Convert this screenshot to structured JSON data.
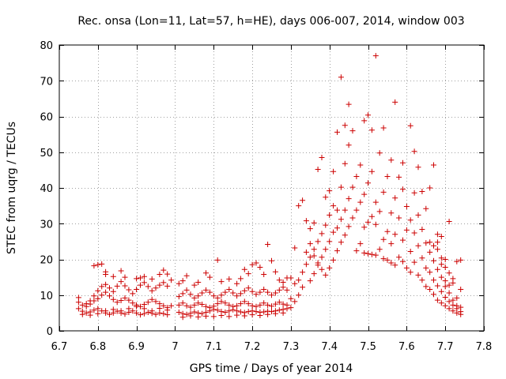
{
  "chart_data": {
    "type": "scatter",
    "title": "Rec. onsa (Lon=11, Lat=57, h=HE), days 006-007, 2014, window 003",
    "xlabel": "GPS time / Days of year 2014",
    "ylabel": "STEC from uqrg / TECUs",
    "xlim": [
      6.7,
      7.8
    ],
    "ylim": [
      0,
      80
    ],
    "xticks": [
      6.7,
      6.8,
      6.9,
      7.0,
      7.1,
      7.2,
      7.3,
      7.4,
      7.5,
      7.6,
      7.7,
      7.8
    ],
    "xtick_labels": [
      "6.7",
      "6.8",
      "6.9",
      "7",
      "7.1",
      "7.2",
      "7.3",
      "7.4",
      "7.5",
      "7.6",
      "7.7",
      "7.8"
    ],
    "yticks": [
      0,
      10,
      20,
      30,
      40,
      50,
      60,
      70,
      80
    ],
    "ytick_labels": [
      "0",
      "10",
      "20",
      "30",
      "40",
      "50",
      "60",
      "70",
      "80"
    ],
    "grid": true,
    "marker": "+",
    "series_color": "#cc0000",
    "points": [
      [
        6.75,
        9.3
      ],
      [
        6.75,
        8.0
      ],
      [
        6.76,
        7.2
      ],
      [
        6.77,
        6.8
      ],
      [
        6.78,
        7.5
      ],
      [
        6.79,
        8.4
      ],
      [
        6.8,
        9.0
      ],
      [
        6.81,
        10.0
      ],
      [
        6.82,
        10.8
      ],
      [
        6.83,
        9.8
      ],
      [
        6.84,
        8.8
      ],
      [
        6.85,
        8.0
      ],
      [
        6.86,
        8.5
      ],
      [
        6.87,
        9.2
      ],
      [
        6.88,
        8.6
      ],
      [
        6.89,
        7.8
      ],
      [
        6.9,
        7.2
      ],
      [
        6.91,
        6.8
      ],
      [
        6.92,
        7.4
      ],
      [
        6.93,
        8.0
      ],
      [
        6.94,
        8.8
      ],
      [
        6.95,
        8.2
      ],
      [
        6.96,
        7.6
      ],
      [
        6.97,
        7.0
      ],
      [
        6.98,
        6.5
      ],
      [
        6.99,
        7.0
      ],
      [
        6.75,
        6.2
      ],
      [
        6.76,
        5.5
      ],
      [
        6.77,
        5.0
      ],
      [
        6.78,
        5.3
      ],
      [
        6.79,
        5.8
      ],
      [
        6.8,
        6.2
      ],
      [
        6.81,
        5.6
      ],
      [
        6.82,
        5.0
      ],
      [
        6.83,
        4.6
      ],
      [
        6.84,
        5.0
      ],
      [
        6.85,
        5.5
      ],
      [
        6.86,
        5.0
      ],
      [
        6.87,
        4.7
      ],
      [
        6.88,
        5.2
      ],
      [
        6.89,
        5.6
      ],
      [
        6.9,
        5.0
      ],
      [
        6.91,
        4.5
      ],
      [
        6.92,
        4.8
      ],
      [
        6.93,
        5.2
      ],
      [
        6.94,
        4.9
      ],
      [
        6.95,
        4.6
      ],
      [
        6.96,
        5.0
      ],
      [
        6.97,
        4.8
      ],
      [
        6.98,
        4.5
      ],
      [
        6.77,
        7.6
      ],
      [
        6.78,
        8.4
      ],
      [
        6.79,
        9.8
      ],
      [
        6.8,
        11.2
      ],
      [
        6.81,
        12.4
      ],
      [
        6.82,
        13.0
      ],
      [
        6.83,
        12.0
      ],
      [
        6.84,
        11.0
      ],
      [
        6.85,
        12.5
      ],
      [
        6.86,
        13.8
      ],
      [
        6.87,
        12.6
      ],
      [
        6.88,
        11.5
      ],
      [
        6.89,
        10.4
      ],
      [
        6.9,
        11.6
      ],
      [
        6.91,
        12.8
      ],
      [
        6.92,
        13.5
      ],
      [
        6.93,
        12.4
      ],
      [
        6.94,
        11.2
      ],
      [
        6.95,
        12.0
      ],
      [
        6.96,
        12.8
      ],
      [
        6.97,
        13.5
      ],
      [
        6.98,
        12.5
      ],
      [
        6.79,
        18.2
      ],
      [
        6.8,
        18.5
      ],
      [
        6.81,
        18.7
      ],
      [
        6.82,
        16.5
      ],
      [
        6.82,
        15.8
      ],
      [
        6.84,
        15.2
      ],
      [
        6.86,
        16.8
      ],
      [
        6.87,
        15.0
      ],
      [
        6.9,
        14.6
      ],
      [
        6.91,
        14.8
      ],
      [
        6.92,
        15.2
      ],
      [
        6.94,
        14.5
      ],
      [
        6.96,
        15.8
      ],
      [
        6.97,
        17.0
      ],
      [
        6.98,
        15.9
      ],
      [
        6.99,
        14.2
      ],
      [
        6.76,
        4.6
      ],
      [
        6.78,
        4.4
      ],
      [
        6.8,
        4.8
      ],
      [
        6.82,
        5.6
      ],
      [
        6.84,
        6.0
      ],
      [
        6.86,
        5.6
      ],
      [
        6.88,
        6.2
      ],
      [
        6.9,
        6.8
      ],
      [
        6.92,
        6.2
      ],
      [
        6.94,
        5.6
      ],
      [
        6.96,
        6.3
      ],
      [
        6.98,
        5.8
      ],
      [
        7.01,
        5.2
      ],
      [
        7.02,
        4.8
      ],
      [
        7.03,
        4.6
      ],
      [
        7.04,
        4.9
      ],
      [
        7.05,
        5.3
      ],
      [
        7.06,
        5.0
      ],
      [
        7.07,
        4.8
      ],
      [
        7.08,
        5.2
      ],
      [
        7.09,
        5.6
      ],
      [
        7.1,
        6.0
      ],
      [
        7.11,
        5.8
      ],
      [
        7.12,
        5.4
      ],
      [
        7.13,
        5.2
      ],
      [
        7.14,
        5.6
      ],
      [
        7.15,
        5.9
      ],
      [
        7.16,
        5.6
      ],
      [
        7.17,
        5.3
      ],
      [
        7.18,
        5.1
      ],
      [
        7.19,
        5.4
      ],
      [
        7.2,
        5.6
      ],
      [
        7.21,
        5.4
      ],
      [
        7.22,
        5.2
      ],
      [
        7.23,
        5.3
      ],
      [
        7.24,
        5.5
      ],
      [
        7.25,
        5.4
      ],
      [
        7.26,
        5.6
      ],
      [
        7.27,
        5.8
      ],
      [
        7.28,
        6.0
      ],
      [
        7.29,
        6.2
      ],
      [
        7.01,
        7.2
      ],
      [
        7.02,
        7.8
      ],
      [
        7.03,
        7.0
      ],
      [
        7.04,
        6.6
      ],
      [
        7.05,
        7.2
      ],
      [
        7.06,
        7.8
      ],
      [
        7.07,
        7.4
      ],
      [
        7.08,
        6.8
      ],
      [
        7.09,
        6.5
      ],
      [
        7.1,
        6.9
      ],
      [
        7.11,
        7.6
      ],
      [
        7.12,
        8.2
      ],
      [
        7.13,
        7.8
      ],
      [
        7.14,
        7.2
      ],
      [
        7.15,
        6.8
      ],
      [
        7.16,
        7.0
      ],
      [
        7.17,
        7.6
      ],
      [
        7.18,
        8.2
      ],
      [
        7.19,
        7.6
      ],
      [
        7.2,
        7.0
      ],
      [
        7.21,
        6.8
      ],
      [
        7.22,
        7.2
      ],
      [
        7.23,
        7.8
      ],
      [
        7.24,
        7.2
      ],
      [
        7.25,
        6.9
      ],
      [
        7.26,
        7.5
      ],
      [
        7.27,
        8.0
      ],
      [
        7.28,
        7.5
      ],
      [
        7.29,
        7.2
      ],
      [
        7.01,
        9.6
      ],
      [
        7.02,
        10.4
      ],
      [
        7.03,
        11.4
      ],
      [
        7.04,
        10.2
      ],
      [
        7.05,
        9.2
      ],
      [
        7.06,
        9.8
      ],
      [
        7.07,
        10.6
      ],
      [
        7.08,
        11.4
      ],
      [
        7.09,
        10.8
      ],
      [
        7.1,
        9.8
      ],
      [
        7.11,
        9.2
      ],
      [
        7.12,
        10.0
      ],
      [
        7.13,
        10.8
      ],
      [
        7.14,
        11.6
      ],
      [
        7.15,
        10.6
      ],
      [
        7.16,
        9.8
      ],
      [
        7.17,
        10.4
      ],
      [
        7.18,
        11.2
      ],
      [
        7.19,
        12.0
      ],
      [
        7.2,
        11.0
      ],
      [
        7.21,
        10.2
      ],
      [
        7.22,
        10.8
      ],
      [
        7.23,
        11.6
      ],
      [
        7.24,
        10.8
      ],
      [
        7.25,
        10.0
      ],
      [
        7.26,
        10.6
      ],
      [
        7.27,
        11.4
      ],
      [
        7.28,
        12.2
      ],
      [
        7.29,
        11.4
      ],
      [
        7.01,
        13.2
      ],
      [
        7.02,
        14.0
      ],
      [
        7.03,
        15.4
      ],
      [
        7.05,
        12.8
      ],
      [
        7.06,
        13.6
      ],
      [
        7.08,
        16.2
      ],
      [
        7.09,
        15.0
      ],
      [
        7.11,
        19.8
      ],
      [
        7.12,
        13.8
      ],
      [
        7.14,
        14.5
      ],
      [
        7.16,
        13.2
      ],
      [
        7.17,
        14.6
      ],
      [
        7.18,
        17.2
      ],
      [
        7.19,
        16.0
      ],
      [
        7.2,
        18.5
      ],
      [
        7.21,
        19.0
      ],
      [
        7.22,
        17.8
      ],
      [
        7.23,
        15.8
      ],
      [
        7.24,
        24.2
      ],
      [
        7.25,
        19.6
      ],
      [
        7.26,
        16.5
      ],
      [
        7.27,
        14.2
      ],
      [
        7.28,
        13.6
      ],
      [
        7.29,
        14.8
      ],
      [
        7.02,
        3.8
      ],
      [
        7.04,
        4.2
      ],
      [
        7.06,
        3.9
      ],
      [
        7.08,
        4.1
      ],
      [
        7.1,
        4.0
      ],
      [
        7.12,
        4.3
      ],
      [
        7.14,
        4.0
      ],
      [
        7.16,
        4.4
      ],
      [
        7.18,
        4.2
      ],
      [
        7.2,
        4.5
      ],
      [
        7.22,
        4.3
      ],
      [
        7.24,
        4.6
      ],
      [
        7.26,
        4.8
      ],
      [
        7.28,
        5.0
      ],
      [
        7.3,
        6.5
      ],
      [
        7.3,
        9.0
      ],
      [
        7.3,
        14.8
      ],
      [
        7.31,
        8.2
      ],
      [
        7.31,
        13.2
      ],
      [
        7.31,
        23.2
      ],
      [
        7.32,
        10.0
      ],
      [
        7.32,
        14.2
      ],
      [
        7.32,
        35.0
      ],
      [
        7.33,
        12.2
      ],
      [
        7.33,
        16.4
      ],
      [
        7.33,
        36.5
      ],
      [
        7.34,
        30.8
      ],
      [
        7.34,
        18.6
      ],
      [
        7.35,
        14.0
      ],
      [
        7.35,
        20.6
      ],
      [
        7.35,
        28.6
      ],
      [
        7.36,
        16.0
      ],
      [
        7.36,
        22.8
      ],
      [
        7.36,
        30.2
      ],
      [
        7.37,
        18.4
      ],
      [
        7.37,
        25.0
      ],
      [
        7.37,
        45.2
      ],
      [
        7.38,
        20.6
      ],
      [
        7.38,
        27.2
      ],
      [
        7.38,
        48.5
      ],
      [
        7.39,
        22.8
      ],
      [
        7.39,
        29.6
      ],
      [
        7.39,
        37.4
      ],
      [
        7.4,
        25.0
      ],
      [
        7.4,
        32.4
      ],
      [
        7.4,
        39.2
      ],
      [
        7.41,
        27.6
      ],
      [
        7.41,
        35.0
      ],
      [
        7.41,
        44.6
      ],
      [
        7.34,
        22.0
      ],
      [
        7.35,
        24.4
      ],
      [
        7.36,
        21.0
      ],
      [
        7.37,
        19.0
      ],
      [
        7.38,
        17.2
      ],
      [
        7.39,
        15.6
      ],
      [
        7.4,
        17.6
      ],
      [
        7.41,
        19.8
      ],
      [
        7.42,
        22.4
      ],
      [
        7.42,
        28.8
      ],
      [
        7.42,
        33.8
      ],
      [
        7.42,
        55.6
      ],
      [
        7.43,
        24.8
      ],
      [
        7.43,
        31.2
      ],
      [
        7.43,
        40.2
      ],
      [
        7.43,
        71.0
      ],
      [
        7.44,
        26.8
      ],
      [
        7.44,
        33.8
      ],
      [
        7.44,
        46.8
      ],
      [
        7.44,
        57.5
      ],
      [
        7.45,
        29.2
      ],
      [
        7.45,
        37.0
      ],
      [
        7.45,
        52.0
      ],
      [
        7.45,
        63.4
      ],
      [
        7.46,
        31.6
      ],
      [
        7.46,
        40.2
      ],
      [
        7.46,
        56.0
      ],
      [
        7.47,
        22.4
      ],
      [
        7.47,
        33.8
      ],
      [
        7.47,
        43.2
      ],
      [
        7.48,
        24.4
      ],
      [
        7.48,
        36.0
      ],
      [
        7.48,
        46.4
      ],
      [
        7.49,
        21.8
      ],
      [
        7.49,
        29.0
      ],
      [
        7.49,
        38.2
      ],
      [
        7.49,
        58.8
      ],
      [
        7.5,
        21.6
      ],
      [
        7.5,
        30.4
      ],
      [
        7.5,
        41.4
      ],
      [
        7.5,
        60.4
      ],
      [
        7.51,
        21.4
      ],
      [
        7.51,
        32.0
      ],
      [
        7.51,
        44.6
      ],
      [
        7.51,
        56.2
      ],
      [
        7.52,
        21.2
      ],
      [
        7.52,
        29.8
      ],
      [
        7.52,
        36.0
      ],
      [
        7.52,
        77.0
      ],
      [
        7.53,
        22.8
      ],
      [
        7.53,
        33.4
      ],
      [
        7.53,
        49.8
      ],
      [
        7.54,
        20.2
      ],
      [
        7.54,
        25.6
      ],
      [
        7.54,
        38.8
      ],
      [
        7.54,
        56.8
      ],
      [
        7.55,
        19.8
      ],
      [
        7.55,
        27.8
      ],
      [
        7.55,
        43.2
      ],
      [
        7.56,
        19.0
      ],
      [
        7.56,
        24.4
      ],
      [
        7.56,
        33.0
      ],
      [
        7.56,
        47.8
      ],
      [
        7.57,
        18.4
      ],
      [
        7.57,
        27.0
      ],
      [
        7.57,
        37.2
      ],
      [
        7.57,
        64.0
      ],
      [
        7.58,
        20.6
      ],
      [
        7.58,
        31.6
      ],
      [
        7.58,
        43.0
      ],
      [
        7.59,
        19.4
      ],
      [
        7.59,
        25.4
      ],
      [
        7.59,
        39.6
      ],
      [
        7.59,
        47.0
      ],
      [
        7.6,
        17.6
      ],
      [
        7.6,
        28.2
      ],
      [
        7.6,
        34.8
      ],
      [
        7.61,
        16.4
      ],
      [
        7.61,
        22.2
      ],
      [
        7.61,
        31.0
      ],
      [
        7.61,
        57.4
      ],
      [
        7.62,
        19.2
      ],
      [
        7.62,
        27.4
      ],
      [
        7.62,
        38.6
      ],
      [
        7.62,
        50.2
      ],
      [
        7.63,
        15.6
      ],
      [
        7.63,
        23.8
      ],
      [
        7.63,
        32.4
      ],
      [
        7.63,
        45.8
      ],
      [
        7.64,
        14.2
      ],
      [
        7.64,
        20.4
      ],
      [
        7.64,
        28.4
      ],
      [
        7.64,
        39.0
      ],
      [
        7.65,
        12.4
      ],
      [
        7.65,
        17.6
      ],
      [
        7.65,
        24.6
      ],
      [
        7.65,
        34.2
      ],
      [
        7.66,
        11.6
      ],
      [
        7.66,
        16.4
      ],
      [
        7.66,
        22.0
      ],
      [
        7.66,
        40.0
      ],
      [
        7.67,
        10.2
      ],
      [
        7.67,
        14.2
      ],
      [
        7.67,
        19.6
      ],
      [
        7.67,
        46.4
      ],
      [
        7.68,
        8.6
      ],
      [
        7.68,
        12.6
      ],
      [
        7.68,
        17.2
      ],
      [
        7.68,
        24.8
      ],
      [
        7.69,
        7.8
      ],
      [
        7.69,
        11.0
      ],
      [
        7.69,
        15.0
      ],
      [
        7.69,
        26.4
      ],
      [
        7.7,
        7.0
      ],
      [
        7.7,
        9.4
      ],
      [
        7.7,
        12.4
      ],
      [
        7.7,
        20.0
      ],
      [
        7.71,
        6.2
      ],
      [
        7.71,
        8.2
      ],
      [
        7.71,
        10.6
      ],
      [
        7.71,
        30.6
      ],
      [
        7.72,
        5.6
      ],
      [
        7.72,
        7.2
      ],
      [
        7.72,
        14.6
      ],
      [
        7.73,
        5.0
      ],
      [
        7.73,
        6.2
      ],
      [
        7.73,
        9.2
      ],
      [
        7.73,
        19.4
      ],
      [
        7.74,
        4.6
      ],
      [
        7.74,
        5.4
      ],
      [
        7.74,
        11.6
      ],
      [
        7.74,
        19.8
      ],
      [
        7.66,
        24.8
      ],
      [
        7.67,
        23.8
      ],
      [
        7.68,
        22.8
      ],
      [
        7.69,
        20.4
      ],
      [
        7.7,
        17.8
      ],
      [
        7.71,
        16.2
      ],
      [
        7.72,
        13.4
      ],
      [
        7.68,
        27.0
      ],
      [
        7.69,
        18.6
      ],
      [
        7.7,
        14.0
      ],
      [
        7.71,
        12.8
      ],
      [
        7.72,
        8.6
      ],
      [
        7.73,
        7.0
      ],
      [
        7.74,
        6.6
      ]
    ]
  }
}
